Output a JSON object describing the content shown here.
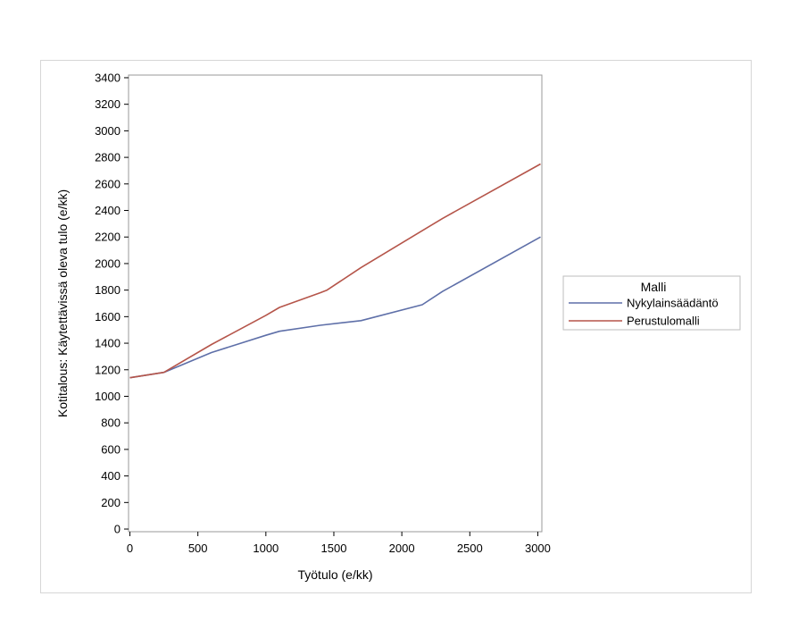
{
  "chart_data": {
    "type": "line",
    "xlabel": "Työtulo (e/kk)",
    "ylabel": "Kotitalous: Käytettävissä oleva tulo (e/kk)",
    "xlim": [
      -10,
      3030
    ],
    "ylim": [
      -20,
      3420
    ],
    "xticks": [
      0,
      500,
      1000,
      1500,
      2000,
      2500,
      3000
    ],
    "yticks": [
      0,
      200,
      400,
      600,
      800,
      1000,
      1200,
      1400,
      1600,
      1800,
      2000,
      2200,
      2400,
      2600,
      2800,
      3000,
      3200,
      3400
    ],
    "grid": false,
    "legend": {
      "title": "Malli",
      "position": "right"
    },
    "series": [
      {
        "name": "Nykylainsäädäntö",
        "color": "#5e6fa8",
        "x": [
          0,
          250,
          600,
          1000,
          1100,
          1400,
          1700,
          2150,
          2300,
          3020
        ],
        "y": [
          1140,
          1180,
          1330,
          1460,
          1490,
          1535,
          1570,
          1690,
          1790,
          2200
        ]
      },
      {
        "name": "Perustulomalli",
        "color": "#b5554a",
        "x": [
          0,
          250,
          600,
          1000,
          1100,
          1400,
          1450,
          1700,
          2300,
          3020
        ],
        "y": [
          1140,
          1180,
          1390,
          1610,
          1670,
          1780,
          1800,
          1970,
          2340,
          2750
        ]
      }
    ]
  }
}
